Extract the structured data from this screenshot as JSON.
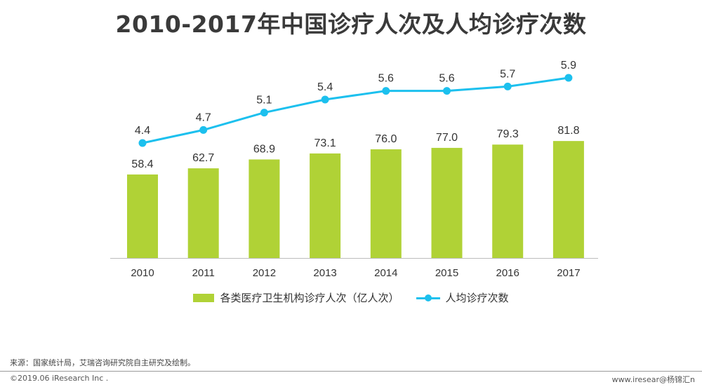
{
  "title": "2010-2017年中国诊疗人次及人均诊疗次数",
  "chart_data": {
    "type": "bar",
    "categories": [
      "2010",
      "2011",
      "2012",
      "2013",
      "2014",
      "2015",
      "2016",
      "2017"
    ],
    "series": [
      {
        "name": "各类医疗卫生机构诊疗人次（亿人次）",
        "type": "bar",
        "color": "#b0d236",
        "values": [
          58.4,
          62.7,
          68.9,
          73.1,
          76.0,
          77.0,
          79.3,
          81.8
        ],
        "labels": [
          "58.4",
          "62.7",
          "68.9",
          "73.1",
          "76.0",
          "77.0",
          "79.3",
          "81.8"
        ]
      },
      {
        "name": "人均诊疗次数",
        "type": "line",
        "color": "#1cc0ee",
        "values": [
          4.4,
          4.7,
          5.1,
          5.4,
          5.6,
          5.6,
          5.7,
          5.9
        ],
        "labels": [
          "4.4",
          "4.7",
          "5.1",
          "5.4",
          "5.6",
          "5.6",
          "5.7",
          "5.9"
        ]
      }
    ],
    "legend_position": "bottom",
    "grid": false
  },
  "legend": {
    "bar_label": "各类医疗卫生机构诊疗人次（亿人次）",
    "line_label": "人均诊疗次数"
  },
  "source": "来源：国家统计局，艾瑞咨询研究院自主研究及绘制。",
  "copyright": "©2019.06 iResearch Inc .",
  "website": "www.iresear@杨锦汇n"
}
